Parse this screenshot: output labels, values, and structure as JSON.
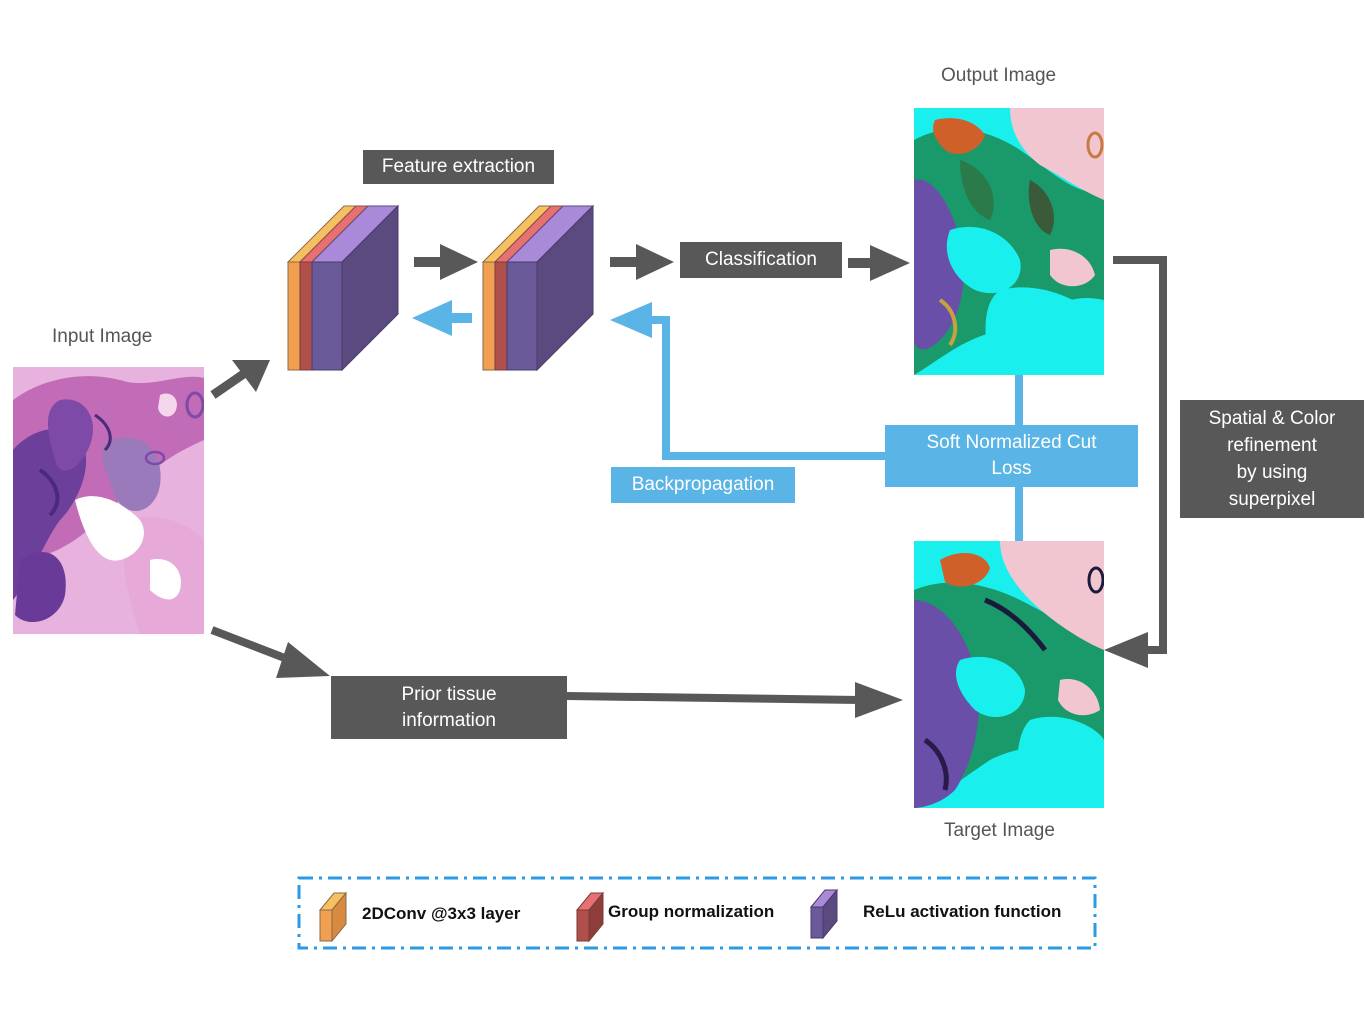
{
  "captions": {
    "input_image": "Input Image",
    "output_image": "Output Image",
    "target_image": "Target Image"
  },
  "boxes": {
    "feature_extraction": "Feature extraction",
    "classification": "Classification",
    "backpropagation": "Backpropagation",
    "soft_ncut_loss": "Soft Normalized Cut\nLoss",
    "spatial_color": "Spatial & Color\nrefinement\nby using\nsuperpixel",
    "prior_tissue": "Prior tissue\ninformation"
  },
  "legend": {
    "conv": "2DConv @3x3 layer",
    "group_norm": "Group normalization",
    "relu": "ReLu activation function"
  },
  "colors": {
    "conv": "#f0a050",
    "group_norm": "#b0504a",
    "relu": "#6a5a9a",
    "arrow_dark": "#585858",
    "arrow_blue": "#5ab4e6",
    "cyan": "#19f0ee",
    "pink_tissue": "#c764b8"
  }
}
